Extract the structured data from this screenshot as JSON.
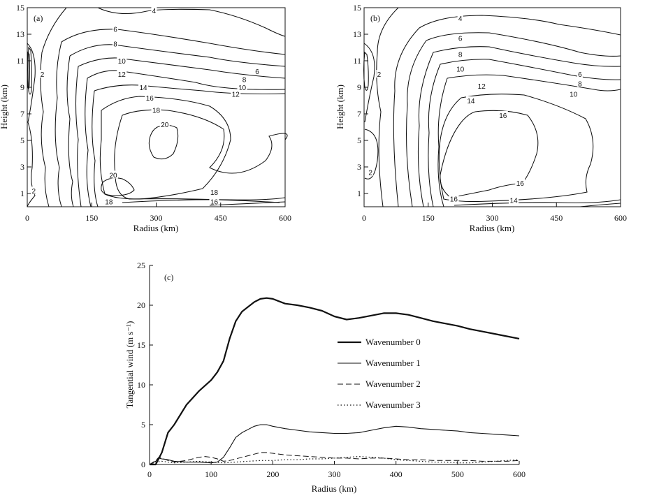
{
  "chart_data": [
    {
      "type": "contour",
      "panel_label": "(a)",
      "xlabel": "Radius (km)",
      "ylabel": "Height (km)",
      "xlim": [
        0,
        600
      ],
      "ylim": [
        0,
        15
      ],
      "xticks": [
        0,
        150,
        300,
        450,
        600
      ],
      "yticks": [
        1,
        3,
        5,
        7,
        9,
        11,
        13,
        15
      ],
      "contour_levels": [
        2,
        4,
        6,
        8,
        10,
        12,
        14,
        16,
        18,
        20
      ],
      "inline_labels": [
        {
          "text": "4",
          "x": 295,
          "y": 14.8
        },
        {
          "text": "6",
          "x": 205,
          "y": 13.4
        },
        {
          "text": "8",
          "x": 205,
          "y": 12.3
        },
        {
          "text": "10",
          "x": 220,
          "y": 11.0
        },
        {
          "text": "12",
          "x": 220,
          "y": 10.0
        },
        {
          "text": "14",
          "x": 270,
          "y": 9.0
        },
        {
          "text": "16",
          "x": 285,
          "y": 8.2
        },
        {
          "text": "18",
          "x": 300,
          "y": 7.3
        },
        {
          "text": "20",
          "x": 320,
          "y": 6.2
        },
        {
          "text": "20",
          "x": 200,
          "y": 2.4
        },
        {
          "text": "18",
          "x": 190,
          "y": 0.4
        },
        {
          "text": "18",
          "x": 435,
          "y": 1.1
        },
        {
          "text": "16",
          "x": 435,
          "y": 0.4
        },
        {
          "text": "6",
          "x": 535,
          "y": 10.2
        },
        {
          "text": "8",
          "x": 505,
          "y": 9.6
        },
        {
          "text": "10",
          "x": 500,
          "y": 9.0
        },
        {
          "text": "12",
          "x": 485,
          "y": 8.5
        },
        {
          "text": "2",
          "x": 35,
          "y": 10.0
        },
        {
          "text": "2",
          "x": 15,
          "y": 1.2
        }
      ]
    },
    {
      "type": "contour",
      "panel_label": "(b)",
      "xlabel": "Radius (km)",
      "ylabel": "Height (km)",
      "xlim": [
        0,
        600
      ],
      "ylim": [
        0,
        15
      ],
      "xticks": [
        0,
        150,
        300,
        450,
        600
      ],
      "yticks": [
        1,
        3,
        5,
        7,
        9,
        11,
        13,
        15
      ],
      "contour_levels": [
        2,
        4,
        6,
        8,
        10,
        12,
        14,
        16
      ],
      "inline_labels": [
        {
          "text": "4",
          "x": 225,
          "y": 14.2
        },
        {
          "text": "6",
          "x": 225,
          "y": 12.7
        },
        {
          "text": "8",
          "x": 225,
          "y": 11.5
        },
        {
          "text": "10",
          "x": 225,
          "y": 10.4
        },
        {
          "text": "12",
          "x": 275,
          "y": 9.1
        },
        {
          "text": "14",
          "x": 250,
          "y": 8.0
        },
        {
          "text": "16",
          "x": 325,
          "y": 6.9
        },
        {
          "text": "16",
          "x": 365,
          "y": 1.8
        },
        {
          "text": "16",
          "x": 210,
          "y": 0.6
        },
        {
          "text": "14",
          "x": 350,
          "y": 0.5
        },
        {
          "text": "6",
          "x": 505,
          "y": 10.0
        },
        {
          "text": "8",
          "x": 505,
          "y": 9.3
        },
        {
          "text": "10",
          "x": 490,
          "y": 8.5
        },
        {
          "text": "2",
          "x": 35,
          "y": 10.0
        },
        {
          "text": "2",
          "x": 15,
          "y": 2.6
        }
      ]
    },
    {
      "type": "line",
      "panel_label": "(c)",
      "xlabel": "Radius (km)",
      "ylabel": "Tangential wind (m s⁻¹)",
      "xlim": [
        0,
        600
      ],
      "ylim": [
        0,
        25
      ],
      "xticks": [
        0,
        100,
        200,
        300,
        400,
        500,
        600
      ],
      "yticks": [
        0,
        5,
        10,
        15,
        20,
        25
      ],
      "legend_position": "center-right",
      "series": [
        {
          "name": "Wavenumber 0",
          "style": "thick-solid",
          "x": [
            0,
            10,
            20,
            30,
            40,
            60,
            80,
            100,
            110,
            120,
            130,
            140,
            150,
            160,
            170,
            180,
            190,
            200,
            210,
            220,
            240,
            260,
            280,
            300,
            320,
            340,
            360,
            380,
            400,
            420,
            440,
            460,
            480,
            500,
            520,
            540,
            560,
            580,
            600
          ],
          "y": [
            0,
            0,
            1.5,
            4.0,
            5.0,
            7.5,
            9.2,
            10.6,
            11.6,
            13.0,
            15.8,
            18.0,
            19.2,
            19.8,
            20.4,
            20.8,
            20.9,
            20.8,
            20.5,
            20.2,
            20.0,
            19.7,
            19.3,
            18.6,
            18.2,
            18.4,
            18.7,
            19.0,
            19.0,
            18.8,
            18.4,
            18.0,
            17.7,
            17.4,
            17.0,
            16.7,
            16.4,
            16.1,
            15.8
          ]
        },
        {
          "name": "Wavenumber 1",
          "style": "thin-solid",
          "x": [
            0,
            10,
            15,
            20,
            30,
            40,
            60,
            80,
            100,
            110,
            120,
            130,
            140,
            150,
            160,
            170,
            180,
            190,
            200,
            220,
            240,
            260,
            280,
            300,
            320,
            340,
            360,
            380,
            400,
            420,
            440,
            460,
            480,
            500,
            520,
            540,
            560,
            580,
            600
          ],
          "y": [
            0,
            0.4,
            0.8,
            0.7,
            0.6,
            0.4,
            0.3,
            0.3,
            0.2,
            0.3,
            0.9,
            2.1,
            3.4,
            4.0,
            4.4,
            4.8,
            5.0,
            5.0,
            4.8,
            4.5,
            4.3,
            4.1,
            4.0,
            3.9,
            3.9,
            4.0,
            4.3,
            4.6,
            4.8,
            4.7,
            4.5,
            4.4,
            4.3,
            4.2,
            4.0,
            3.9,
            3.8,
            3.7,
            3.6
          ]
        },
        {
          "name": "Wavenumber 2",
          "style": "dashed",
          "x": [
            0,
            10,
            15,
            20,
            30,
            40,
            50,
            60,
            70,
            80,
            90,
            100,
            110,
            120,
            130,
            140,
            150,
            160,
            170,
            180,
            190,
            200,
            220,
            240,
            260,
            280,
            300,
            320,
            340,
            360,
            380,
            400,
            420,
            440,
            460,
            480,
            500,
            520,
            540,
            560,
            580,
            600
          ],
          "y": [
            0,
            0.5,
            0.9,
            0.8,
            0.5,
            0.3,
            0.4,
            0.5,
            0.7,
            0.9,
            1.0,
            0.9,
            0.7,
            0.4,
            0.5,
            0.7,
            0.9,
            1.1,
            1.3,
            1.5,
            1.5,
            1.4,
            1.2,
            1.1,
            1.0,
            0.9,
            0.8,
            0.8,
            0.7,
            0.8,
            0.8,
            0.7,
            0.6,
            0.6,
            0.5,
            0.5,
            0.5,
            0.5,
            0.4,
            0.4,
            0.4,
            0.5
          ]
        },
        {
          "name": "Wavenumber 3",
          "style": "dotted",
          "x": [
            0,
            10,
            20,
            30,
            40,
            60,
            80,
            100,
            120,
            140,
            160,
            180,
            200,
            220,
            240,
            260,
            280,
            300,
            320,
            340,
            360,
            380,
            400,
            420,
            440,
            460,
            480,
            500,
            520,
            540,
            560,
            580,
            600
          ],
          "y": [
            0,
            0.3,
            0.4,
            0.3,
            0.2,
            0.3,
            0.4,
            0.3,
            0.2,
            0.3,
            0.4,
            0.5,
            0.5,
            0.6,
            0.6,
            0.7,
            0.7,
            0.8,
            0.9,
            1.0,
            0.9,
            0.8,
            0.6,
            0.5,
            0.4,
            0.3,
            0.3,
            0.2,
            0.2,
            0.3,
            0.4,
            0.5,
            0.6
          ]
        }
      ]
    }
  ]
}
